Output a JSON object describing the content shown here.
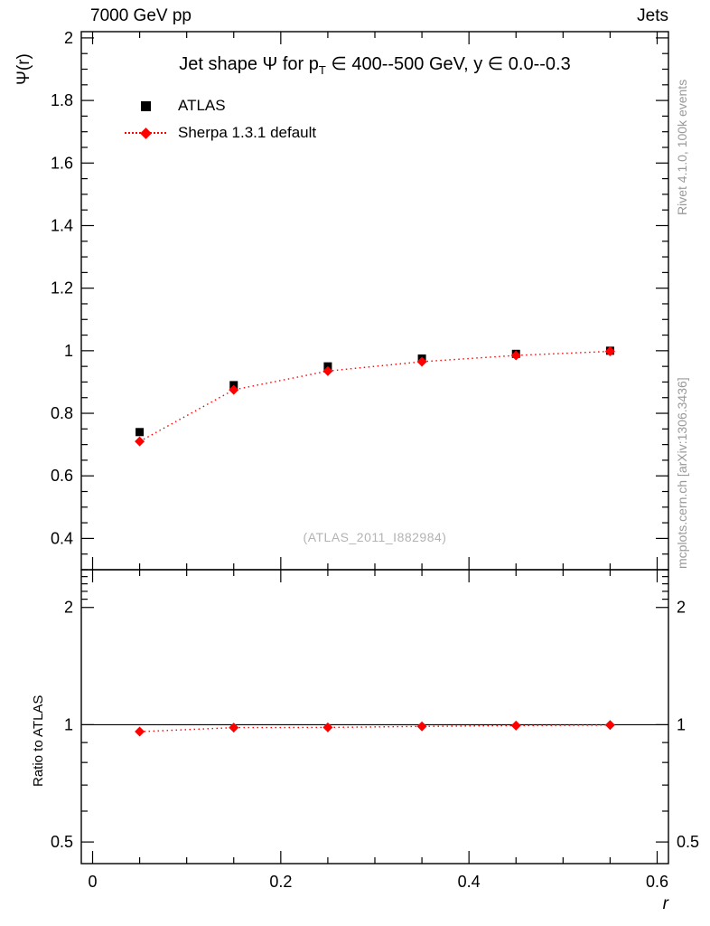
{
  "header": {
    "left": "7000 GeV pp",
    "right": "Jets"
  },
  "title": {
    "pre": "Jet shape Ψ for p",
    "sub": "T",
    "post": " ∈ 400--500 GeV, y ∈ 0.0--0.3"
  },
  "watermark": "(ATLAS_2011_I882984)",
  "side_texts": {
    "rivet": "Rivet 4.1.0, 100k events",
    "mcplots": "mcplots.cern.ch [arXiv:1306.3436]"
  },
  "colors": {
    "data": "#000000",
    "mc": "#ff0000",
    "ref_line": "#000000",
    "frame": "#000000",
    "side_text": "#999999",
    "watermark": "#b3b3b3"
  },
  "chart_data": [
    {
      "type": "scatter",
      "title": "Jet shape Ψ for p_T ∈ 400--500 GeV, y ∈ 0.0--0.3",
      "xlabel": "",
      "ylabel": "Ψ(r)",
      "xlim": [
        -0.012,
        0.612
      ],
      "ylim": [
        0.3,
        2.02
      ],
      "yscale": "linear",
      "xticks": [
        0,
        0.2,
        0.4,
        0.6
      ],
      "xtick_minor_step": 0.05,
      "yticks": [
        0.4,
        0.6,
        0.8,
        1,
        1.2,
        1.4,
        1.6,
        1.8,
        2
      ],
      "ytick_minor_step": 0.05,
      "grid": false,
      "legend_position": "top-left",
      "x": [
        0.05,
        0.15,
        0.25,
        0.35,
        0.45,
        0.55
      ],
      "series": [
        {
          "name": "ATLAS",
          "marker": "square",
          "color": "#000000",
          "line": "none",
          "values": [
            0.74,
            0.89,
            0.95,
            0.975,
            0.99,
            1.0
          ]
        },
        {
          "name": "Sherpa 1.3.1 default",
          "marker": "diamond",
          "color": "#ff0000",
          "line": "dotted",
          "values": [
            0.71,
            0.875,
            0.935,
            0.965,
            0.985,
            0.998
          ]
        }
      ]
    },
    {
      "type": "scatter",
      "title": "",
      "xlabel": "r",
      "ylabel": "Ratio to ATLAS",
      "xlim": [
        -0.012,
        0.612
      ],
      "ylim": [
        0.44,
        2.5
      ],
      "yscale": "log",
      "xticks": [
        0,
        0.2,
        0.4,
        0.6
      ],
      "xtick_minor_step": 0.05,
      "yticks": [
        0.5,
        1,
        2
      ],
      "yticks_minor": [
        0.6,
        0.7,
        0.8,
        0.9,
        2.1,
        2.2,
        2.3,
        2.4
      ],
      "ytick_labels_both_sides": true,
      "ref_line": 1,
      "grid": false,
      "x": [
        0.05,
        0.15,
        0.25,
        0.35,
        0.45,
        0.55
      ],
      "series": [
        {
          "name": "Sherpa 1.3.1 default / ATLAS",
          "marker": "diamond",
          "color": "#ff0000",
          "line": "dotted",
          "values": [
            0.96,
            0.983,
            0.984,
            0.99,
            0.995,
            0.998
          ]
        }
      ]
    }
  ]
}
